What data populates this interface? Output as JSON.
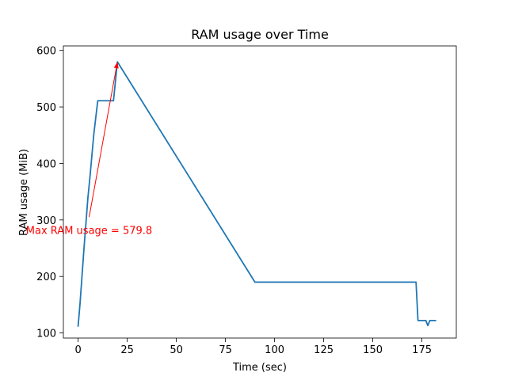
{
  "chart_data": {
    "type": "line",
    "title": "RAM usage over Time",
    "xlabel": "Time (sec)",
    "ylabel": "RAM usage (MiB)",
    "xlim": [
      -7.5,
      192.5
    ],
    "ylim": [
      91,
      608
    ],
    "x_ticks": [
      0,
      25,
      50,
      75,
      100,
      125,
      150,
      175
    ],
    "y_ticks": [
      100,
      200,
      300,
      400,
      500,
      600
    ],
    "grid": false,
    "series": [
      {
        "color": "#1f77b4",
        "points": [
          [
            0,
            112
          ],
          [
            1,
            153
          ],
          [
            3,
            250
          ],
          [
            5,
            340
          ],
          [
            6,
            375
          ],
          [
            8,
            452
          ],
          [
            10,
            511
          ],
          [
            12,
            511
          ],
          [
            14,
            511
          ],
          [
            16,
            511
          ],
          [
            18,
            511
          ],
          [
            20,
            579.8
          ],
          [
            90,
            190
          ],
          [
            172,
            190
          ],
          [
            173,
            122
          ],
          [
            175,
            122
          ],
          [
            177,
            122
          ],
          [
            178,
            113
          ],
          [
            179,
            122
          ],
          [
            182,
            122
          ]
        ]
      }
    ],
    "annotation": {
      "text": "Max RAM usage = 579.8",
      "color": "#ff0000",
      "x": 20,
      "y": 579.8,
      "text_y": 282,
      "arrow_from": [
        5.6,
        305
      ]
    }
  }
}
